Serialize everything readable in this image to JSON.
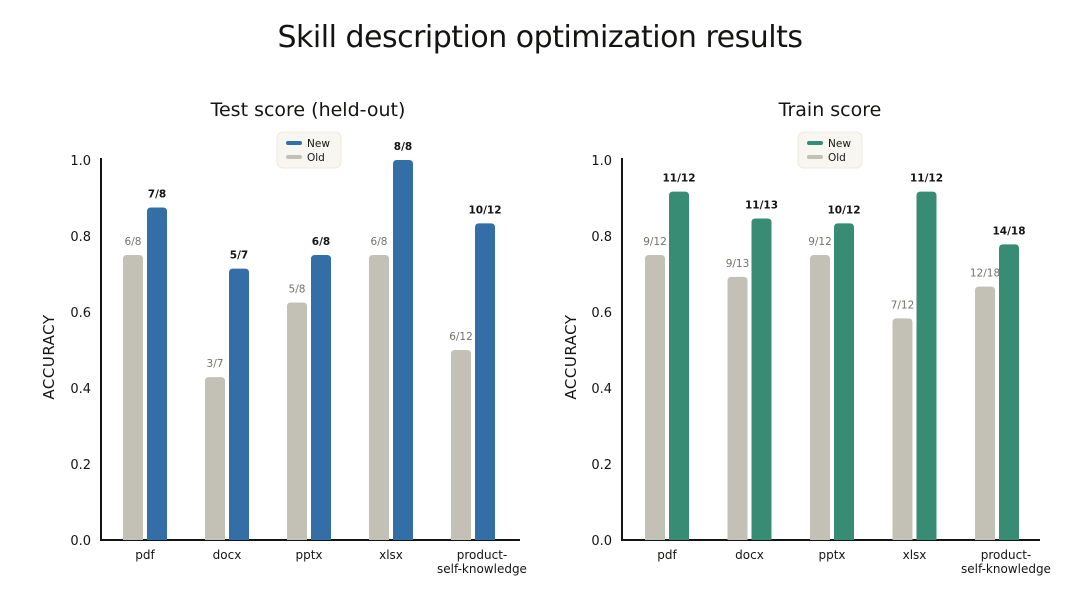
{
  "title": "Skill description optimization results",
  "colors": {
    "old": "#c3c0b6",
    "test_new": "#336ea6",
    "train_new": "#388c73",
    "legend_bg": "#f8f6f0",
    "legend_border": "#ece9df"
  },
  "chart_data": [
    {
      "type": "bar",
      "title": "Test score (held-out)",
      "ylabel": "ACCURACY",
      "xlabel": "",
      "ylim": [
        0,
        1.0
      ],
      "yticks": [
        "0.0",
        "0.2",
        "0.4",
        "0.6",
        "0.8",
        "1.0"
      ],
      "grid": false,
      "legend": "top-center",
      "categories": [
        "pdf",
        "docx",
        "pptx",
        "xlsx",
        "product-\nself-knowledge"
      ],
      "series": [
        {
          "name": "Old",
          "values": [
            0.75,
            0.4286,
            0.625,
            0.75,
            0.5
          ],
          "labels": [
            "6/8",
            "3/7",
            "5/8",
            "6/8",
            "6/12"
          ]
        },
        {
          "name": "New",
          "values": [
            0.875,
            0.7143,
            0.75,
            1.0,
            0.8333
          ],
          "labels": [
            "7/8",
            "5/7",
            "6/8",
            "8/8",
            "10/12"
          ]
        }
      ]
    },
    {
      "type": "bar",
      "title": "Train score",
      "ylabel": "ACCURACY",
      "xlabel": "",
      "ylim": [
        0,
        1.0
      ],
      "yticks": [
        "0.0",
        "0.2",
        "0.4",
        "0.6",
        "0.8",
        "1.0"
      ],
      "grid": false,
      "legend": "top-center",
      "categories": [
        "pdf",
        "docx",
        "pptx",
        "xlsx",
        "product-\nself-knowledge"
      ],
      "series": [
        {
          "name": "Old",
          "values": [
            0.75,
            0.6923,
            0.75,
            0.5833,
            0.6667
          ],
          "labels": [
            "9/12",
            "9/13",
            "9/12",
            "7/12",
            "12/18"
          ]
        },
        {
          "name": "New",
          "values": [
            0.9167,
            0.8462,
            0.8333,
            0.9167,
            0.7778
          ],
          "labels": [
            "11/12",
            "11/13",
            "10/12",
            "11/12",
            "14/18"
          ]
        }
      ]
    }
  ]
}
